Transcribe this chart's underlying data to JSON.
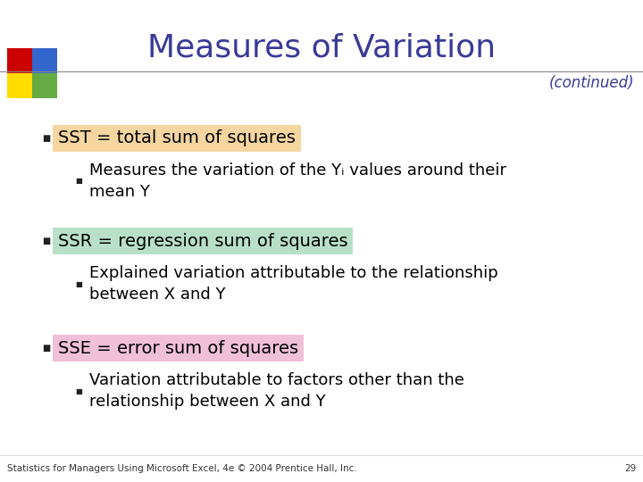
{
  "title": "Measures of Variation",
  "subtitle": "(continued)",
  "title_color": "#3A3A99",
  "title_fontsize": 26,
  "subtitle_fontsize": 12,
  "label_fontsize": 14,
  "sub_fontsize": 13,
  "footer_text": "Statistics for Managers Using Microsoft Excel, 4e © 2004 Prentice Hall, Inc.",
  "footer_page": "29",
  "background_color": "#FFFFFF",
  "bullet1_label": "SST = total sum of squares",
  "bullet1_bg": "#F5D5A0",
  "bullet1_sub": "Measures the variation of the Yᵢ values around their\nmean Y",
  "bullet2_label": "SSR = regression sum of squares",
  "bullet2_bg": "#B8E0C8",
  "bullet2_sub": "Explained variation attributable to the relationship\nbetween X and Y",
  "bullet3_label": "SSE = error sum of squares",
  "bullet3_bg": "#F0C0D8",
  "bullet3_sub": "Variation attributable to factors other than the\nrelationship between X and Y",
  "text_color": "#000000",
  "line_color": "#888888",
  "logo_colors": [
    "#CC0000",
    "#3366CC",
    "#FFDD00",
    "#66AA44"
  ]
}
